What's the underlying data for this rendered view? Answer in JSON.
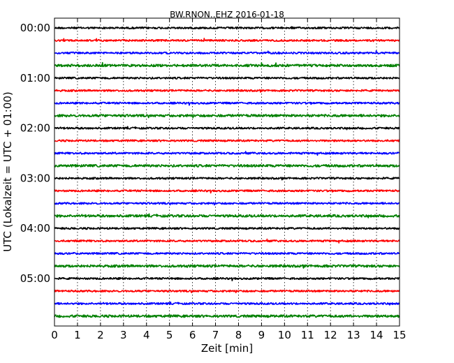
{
  "chart_data": {
    "type": "line",
    "title": "BW.RNON..EHZ 2016-01-18",
    "xlabel": "Zeit  [min]",
    "ylabel": "UTC (Lokalzeit = UTC + 01:00)",
    "xlim": [
      0,
      15
    ],
    "x_ticks": [
      0,
      1,
      2,
      3,
      4,
      5,
      6,
      7,
      8,
      9,
      10,
      11,
      12,
      13,
      14,
      15
    ],
    "x_tick_labels": [
      "0",
      "1",
      "2",
      "3",
      "4",
      "5",
      "6",
      "7",
      "8",
      "9",
      "10",
      "11",
      "12",
      "13",
      "14",
      "15"
    ],
    "y_tick_labels": [
      "00:00",
      "01:00",
      "02:00",
      "03:00",
      "04:00",
      "05:00"
    ],
    "y_tick_trace_index": [
      0,
      4,
      8,
      12,
      16,
      20
    ],
    "trace_interval_min": 15,
    "trace_count": 24,
    "trace_colors": [
      "#000000",
      "#ff0000",
      "#0000ff",
      "#008000"
    ],
    "grid": true
  }
}
